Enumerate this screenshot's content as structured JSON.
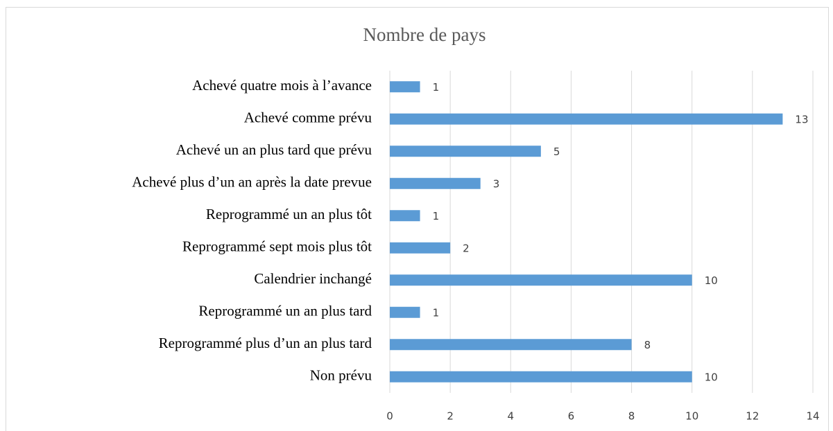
{
  "chart_data": {
    "type": "bar",
    "orientation": "horizontal",
    "title": "Nombre de pays",
    "categories": [
      "Achevé quatre mois à l’avance",
      "Achevé comme prévu",
      "Achevé un an plus tard que prévu",
      "Achevé plus d’un an après la date prevue",
      "Reprogrammé un an plus tôt",
      "Reprogrammé sept mois plus tôt",
      "Calendrier inchangé",
      "Reprogrammé un an plus tard",
      "Reprogrammé plus d’un an plus tard",
      "Non prévu"
    ],
    "values": [
      1,
      13,
      5,
      3,
      1,
      2,
      10,
      1,
      8,
      10
    ],
    "color": "#5b9bd5",
    "xlim": [
      0,
      14
    ],
    "xticks": [
      0,
      2,
      4,
      6,
      8,
      10,
      12,
      14
    ],
    "grid": true
  }
}
